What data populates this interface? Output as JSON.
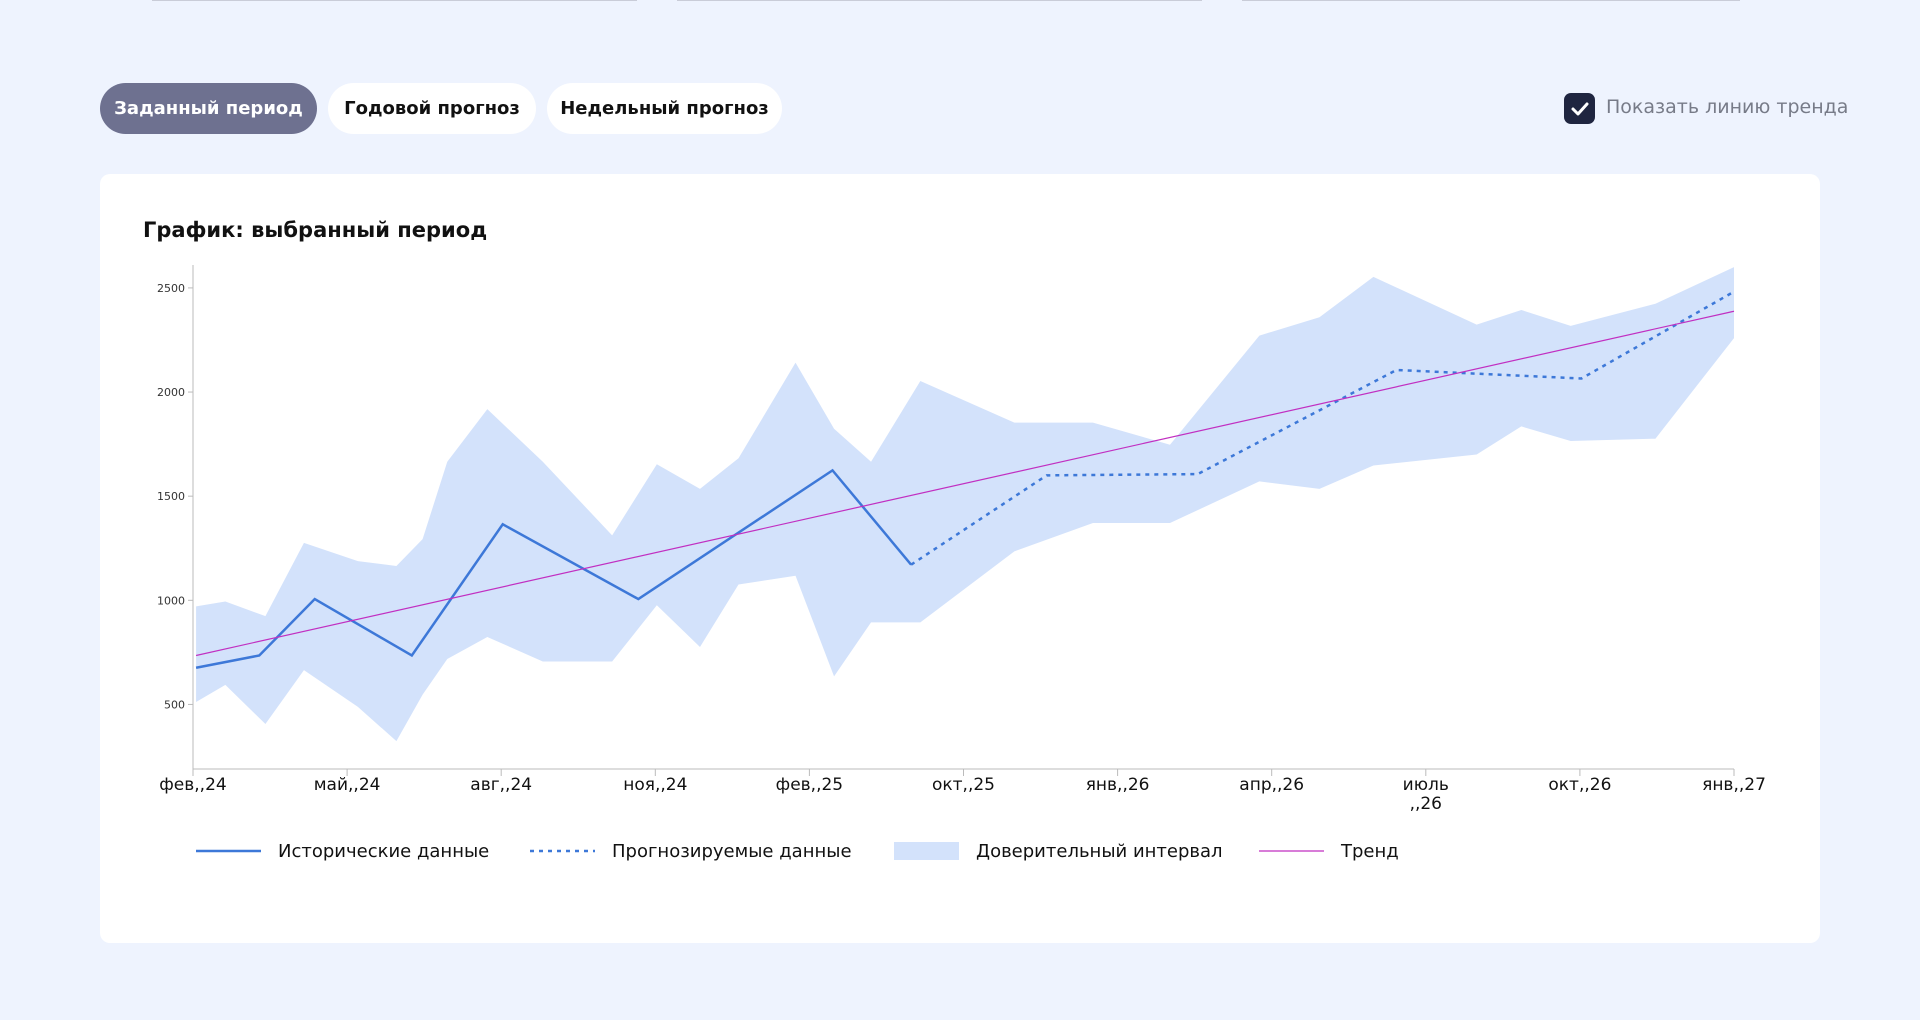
{
  "tabs": [
    "Заданный период",
    "Годовой прогноз",
    "Недельный прогноз"
  ],
  "trend_toggle": "Показать линию тренда",
  "chart_data": {
    "type": "line",
    "title": "График: выбранный период",
    "xlim": [
      0,
      10
    ],
    "xticks": [
      {
        "value": 0,
        "label": "фев,,24"
      },
      {
        "value": 1,
        "label": "май,,24"
      },
      {
        "value": 2,
        "label": "авг,,24"
      },
      {
        "value": 3,
        "label": "ноя,,24"
      },
      {
        "value": 4,
        "label": "фев,,25"
      },
      {
        "value": 5,
        "label": "окт,,25"
      },
      {
        "value": 6,
        "label": "янв,,26"
      },
      {
        "value": 7,
        "label": "апр,,26"
      },
      {
        "value": 8,
        "label": "июль ,,26"
      },
      {
        "value": 9,
        "label": "окт,,26"
      },
      {
        "value": 10,
        "label": "янв,,27"
      }
    ],
    "ylim": [
      190,
      2610
    ],
    "yticks": [
      500,
      1000,
      1500,
      2000,
      2500
    ],
    "series": [
      {
        "name": "Исторические данные",
        "color": "#3d78d8",
        "style": "solid",
        "x": [
          0.02,
          0.43,
          0.79,
          1.42,
          2.01,
          2.89,
          4.15,
          4.66
        ],
        "values": [
          676,
          735,
          1006,
          735,
          1365,
          1006,
          1624,
          1171
        ]
      },
      {
        "name": "Прогнозируемые данные",
        "color": "#3d78d8",
        "style": "dashed",
        "x": [
          4.66,
          5.54,
          6.52,
          7.81,
          9.01,
          10.0
        ],
        "values": [
          1171,
          1600,
          1606,
          2106,
          2065,
          2482
        ]
      },
      {
        "name": "Доверительный интервал",
        "color": "#d3e2fb",
        "style": "band",
        "x": [
          0.02,
          0.21,
          0.47,
          0.72,
          1.07,
          1.32,
          1.49,
          1.65,
          1.91,
          2.27,
          2.72,
          3.01,
          3.29,
          3.54,
          3.91,
          4.16,
          4.4,
          4.72,
          5.33,
          5.84,
          6.34,
          6.92,
          7.31,
          7.66,
          8.33,
          8.62,
          8.94,
          9.49,
          10.0
        ],
        "upper": [
          971,
          994,
          924,
          1276,
          1188,
          1165,
          1294,
          1665,
          1918,
          1665,
          1312,
          1653,
          1535,
          1682,
          2141,
          1824,
          1665,
          2053,
          1853,
          1853,
          1747,
          2271,
          2359,
          2553,
          2324,
          2394,
          2318,
          2424,
          2600
        ],
        "lower": [
          512,
          594,
          406,
          665,
          488,
          324,
          547,
          718,
          824,
          706,
          706,
          976,
          776,
          1076,
          1118,
          635,
          894,
          894,
          1235,
          1371,
          1371,
          1571,
          1535,
          1647,
          1700,
          1835,
          1765,
          1776,
          2259
        ]
      },
      {
        "name": "Тренд",
        "color": "#c12fc1",
        "style": "thin",
        "x": [
          0.02,
          10.0
        ],
        "values": [
          735,
          2388
        ]
      }
    ]
  }
}
